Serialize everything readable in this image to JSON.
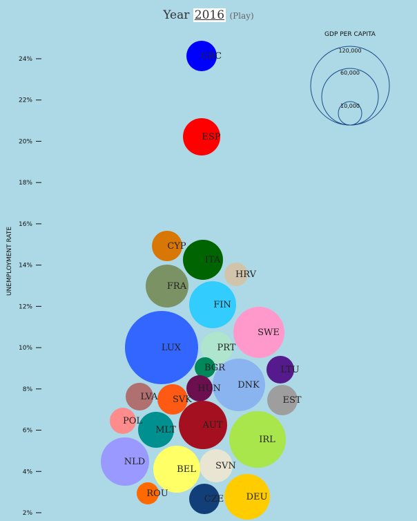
{
  "header": {
    "prefix": "Year",
    "year": "2016",
    "play_label": "(Play)"
  },
  "legend": {
    "title": "GDP PER CAPITA",
    "entries": [
      {
        "label": "120,000",
        "value": 120000
      },
      {
        "label": "60,000",
        "value": 60000
      },
      {
        "label": "10,000",
        "value": 10000
      }
    ]
  },
  "chart_data": {
    "type": "scatter",
    "title": "Year 2016",
    "ylabel": "UNEMPLOYMENT RATE",
    "xlabel": "",
    "ylim": [
      2,
      24
    ],
    "yticks": [
      "2%",
      "4%",
      "6%",
      "8%",
      "10%",
      "12%",
      "14%",
      "16%",
      "18%",
      "20%",
      "22%",
      "24%"
    ],
    "size_variable": "GDP per capita",
    "points": [
      {
        "code": "GRC",
        "unemployment": 24.2,
        "gdp": 15000,
        "color": "#0000ff"
      },
      {
        "code": "ESP",
        "unemployment": 20.2,
        "gdp": 22000,
        "color": "#ff0000"
      },
      {
        "code": "CYP",
        "unemployment": 14.9,
        "gdp": 16000,
        "color": "#d97706"
      },
      {
        "code": "ITA",
        "unemployment": 14.2,
        "gdp": 28000,
        "color": "#006400"
      },
      {
        "code": "HRV",
        "unemployment": 13.6,
        "gdp": 10000,
        "color": "#d2c3ab"
      },
      {
        "code": "FRA",
        "unemployment": 12.9,
        "gdp": 32000,
        "color": "#7a9264"
      },
      {
        "code": "FIN",
        "unemployment": 12.0,
        "gdp": 38000,
        "color": "#33ccff"
      },
      {
        "code": "SWE",
        "unemployment": 10.7,
        "gdp": 45000,
        "color": "#ff99cc"
      },
      {
        "code": "LUX",
        "unemployment": 10.0,
        "gdp": 90000,
        "color": "#3366ff"
      },
      {
        "code": "PRT",
        "unemployment": 10.0,
        "gdp": 17000,
        "color": "#aee5cc"
      },
      {
        "code": "LTU",
        "unemployment": 8.9,
        "gdp": 12000,
        "color": "#551a8b"
      },
      {
        "code": "BGR",
        "unemployment": 8.7,
        "gdp": 7000,
        "color": "#00875a"
      },
      {
        "code": "DNK",
        "unemployment": 8.6,
        "gdp": 48000,
        "color": "#8ab4f0"
      },
      {
        "code": "HUN",
        "unemployment": 8.0,
        "gdp": 12000,
        "color": "#6b0f4e"
      },
      {
        "code": "LVA",
        "unemployment": 7.6,
        "gdp": 12000,
        "color": "#b07070"
      },
      {
        "code": "SVK",
        "unemployment": 7.5,
        "gdp": 15000,
        "color": "#ff5a14"
      },
      {
        "code": "EST",
        "unemployment": 7.5,
        "gdp": 15000,
        "color": "#9e9e9e"
      },
      {
        "code": "POL",
        "unemployment": 6.6,
        "gdp": 11000,
        "color": "#ff8c8c"
      },
      {
        "code": "AUT",
        "unemployment": 6.4,
        "gdp": 39000,
        "color": "#a51020"
      },
      {
        "code": "MLT",
        "unemployment": 6.0,
        "gdp": 22000,
        "color": "#009090"
      },
      {
        "code": "IRL",
        "unemployment": 5.5,
        "gdp": 55000,
        "color": "#a8e64b"
      },
      {
        "code": "NLD",
        "unemployment": 4.5,
        "gdp": 40000,
        "color": "#9999ff"
      },
      {
        "code": "BEL",
        "unemployment": 4.3,
        "gdp": 36000,
        "color": "#ffff66"
      },
      {
        "code": "SVN",
        "unemployment": 4.2,
        "gdp": 19000,
        "color": "#e8e6d2"
      },
      {
        "code": "ROU",
        "unemployment": 3.0,
        "gdp": 8000,
        "color": "#ff6a00"
      },
      {
        "code": "CZE",
        "unemployment": 2.7,
        "gdp": 17000,
        "color": "#123f7a"
      },
      {
        "code": "DEU",
        "unemployment": 2.8,
        "gdp": 38000,
        "color": "#ffcc00"
      }
    ]
  }
}
